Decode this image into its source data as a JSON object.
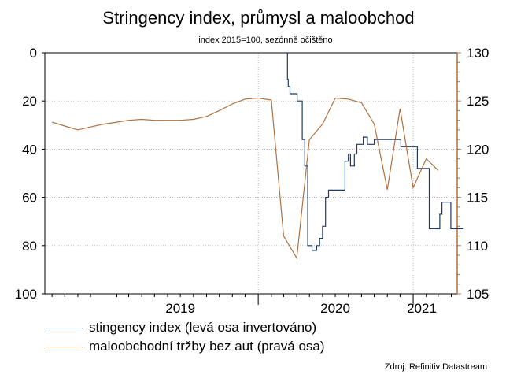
{
  "title": "Stringency index, průmysl a maloobchod",
  "subtitle": "index 2015=100, sezónně očištěno",
  "source": "Zdroj: Refinitiv Datastream",
  "colors": {
    "stringency": "#1f3b63",
    "retail": "#b0713f",
    "right_axis": "#b0713f"
  },
  "chart_data": {
    "type": "line",
    "x_ticks": [
      "2019",
      "2020",
      "2021"
    ],
    "left_axis": {
      "ylim": [
        0,
        100
      ],
      "inverted": true,
      "ticks": [
        "0",
        "20",
        "40",
        "60",
        "80",
        "100"
      ]
    },
    "right_axis": {
      "ylim": [
        105,
        130
      ],
      "ticks": [
        "130",
        "125",
        "120",
        "115",
        "110",
        "105"
      ]
    },
    "grid": true,
    "legend_position": "bottom",
    "series": [
      {
        "name": "stingency index (levá osa invertováno)",
        "axis": "left",
        "step": true,
        "x": [
          "2020-03-01",
          "2020-03-10",
          "2020-03-12",
          "2020-03-16",
          "2020-03-24",
          "2020-04-02",
          "2020-04-07",
          "2020-04-09",
          "2020-04-14",
          "2020-04-20",
          "2020-04-27",
          "2020-05-07",
          "2020-05-11",
          "2020-05-18",
          "2020-05-25",
          "2020-06-01",
          "2020-06-08",
          "2020-06-15",
          "2020-07-01",
          "2020-07-10",
          "2020-07-17",
          "2020-07-24",
          "2020-08-01",
          "2020-08-06",
          "2020-08-15",
          "2020-08-21",
          "2020-09-01",
          "2020-09-05",
          "2020-09-15",
          "2020-10-01",
          "2020-10-05",
          "2020-10-12",
          "2020-10-22",
          "2020-11-01",
          "2020-11-05",
          "2020-11-20",
          "2020-12-03",
          "2020-12-10",
          "2020-12-18",
          "2020-12-23",
          "2021-01-01",
          "2021-01-11",
          "2021-01-20",
          "2021-02-01",
          "2021-02-08",
          "2021-02-15",
          "2021-02-22",
          "2021-03-01",
          "2021-03-05",
          "2021-03-10",
          "2021-03-31",
          "2021-04-10",
          "2021-04-30"
        ],
        "values": [
          0,
          11,
          14,
          17,
          17,
          20,
          20,
          20,
          36,
          47,
          80,
          82,
          82,
          80,
          77,
          72,
          60,
          57,
          57,
          57,
          57,
          45,
          42,
          47,
          42,
          38,
          38,
          35,
          38,
          36,
          36,
          36,
          36,
          36,
          36,
          36,
          39,
          39,
          39,
          39,
          39,
          48,
          48,
          48,
          73,
          73,
          73,
          73,
          67,
          62,
          73,
          73,
          73
        ]
      },
      {
        "name": "maloobchodní tržby bez aut (pravá osa)",
        "axis": "right",
        "x": [
          "2018-09-01",
          "2018-10-01",
          "2018-11-01",
          "2018-12-01",
          "2019-01-01",
          "2019-02-01",
          "2019-03-01",
          "2019-04-01",
          "2019-05-01",
          "2019-06-01",
          "2019-07-01",
          "2019-08-01",
          "2019-09-01",
          "2019-10-01",
          "2019-11-01",
          "2019-12-01",
          "2020-01-01",
          "2020-02-01",
          "2020-03-01",
          "2020-04-01",
          "2020-05-01",
          "2020-06-01",
          "2020-07-01",
          "2020-08-01",
          "2020-09-01",
          "2020-10-01",
          "2020-11-01",
          "2020-12-01",
          "2021-01-01",
          "2021-02-01",
          "2021-03-01"
        ],
        "values": [
          122.8,
          122.4,
          122.0,
          122.3,
          122.6,
          122.8,
          123.0,
          123.1,
          123.0,
          123.0,
          123.0,
          123.1,
          123.4,
          124.0,
          124.7,
          125.2,
          125.3,
          125.1,
          111.0,
          108.7,
          121.0,
          122.6,
          125.3,
          125.2,
          124.8,
          122.6,
          115.8,
          124.2,
          116.0,
          119.0,
          117.8
        ]
      }
    ]
  }
}
